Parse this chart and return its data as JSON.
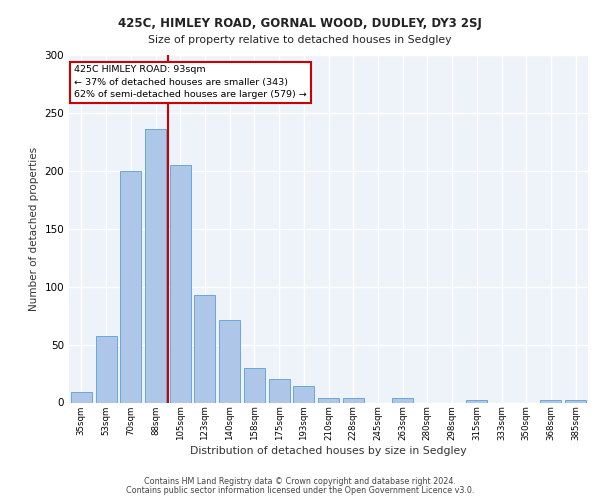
{
  "title1": "425C, HIMLEY ROAD, GORNAL WOOD, DUDLEY, DY3 2SJ",
  "title2": "Size of property relative to detached houses in Sedgley",
  "xlabel": "Distribution of detached houses by size in Sedgley",
  "ylabel": "Number of detached properties",
  "categories": [
    "35sqm",
    "53sqm",
    "70sqm",
    "88sqm",
    "105sqm",
    "123sqm",
    "140sqm",
    "158sqm",
    "175sqm",
    "193sqm",
    "210sqm",
    "228sqm",
    "245sqm",
    "263sqm",
    "280sqm",
    "298sqm",
    "315sqm",
    "333sqm",
    "350sqm",
    "368sqm",
    "385sqm"
  ],
  "values": [
    9,
    57,
    200,
    236,
    205,
    93,
    71,
    30,
    20,
    14,
    4,
    4,
    0,
    4,
    0,
    0,
    2,
    0,
    0,
    2,
    2
  ],
  "bar_color": "#aec6e8",
  "bar_edge_color": "#5a9fd4",
  "vline_x": 3.5,
  "annotation_line1": "425C HIMLEY ROAD: 93sqm",
  "annotation_line2": "← 37% of detached houses are smaller (343)",
  "annotation_line3": "62% of semi-detached houses are larger (579) →",
  "annotation_box_color": "#ffffff",
  "annotation_box_edge": "#cc0000",
  "vline_color": "#cc0000",
  "ylim": [
    0,
    300
  ],
  "yticks": [
    0,
    50,
    100,
    150,
    200,
    250,
    300
  ],
  "footer1": "Contains HM Land Registry data © Crown copyright and database right 2024.",
  "footer2": "Contains public sector information licensed under the Open Government Licence v3.0.",
  "bg_color": "#eef2f9",
  "grid_color": "#ffffff"
}
